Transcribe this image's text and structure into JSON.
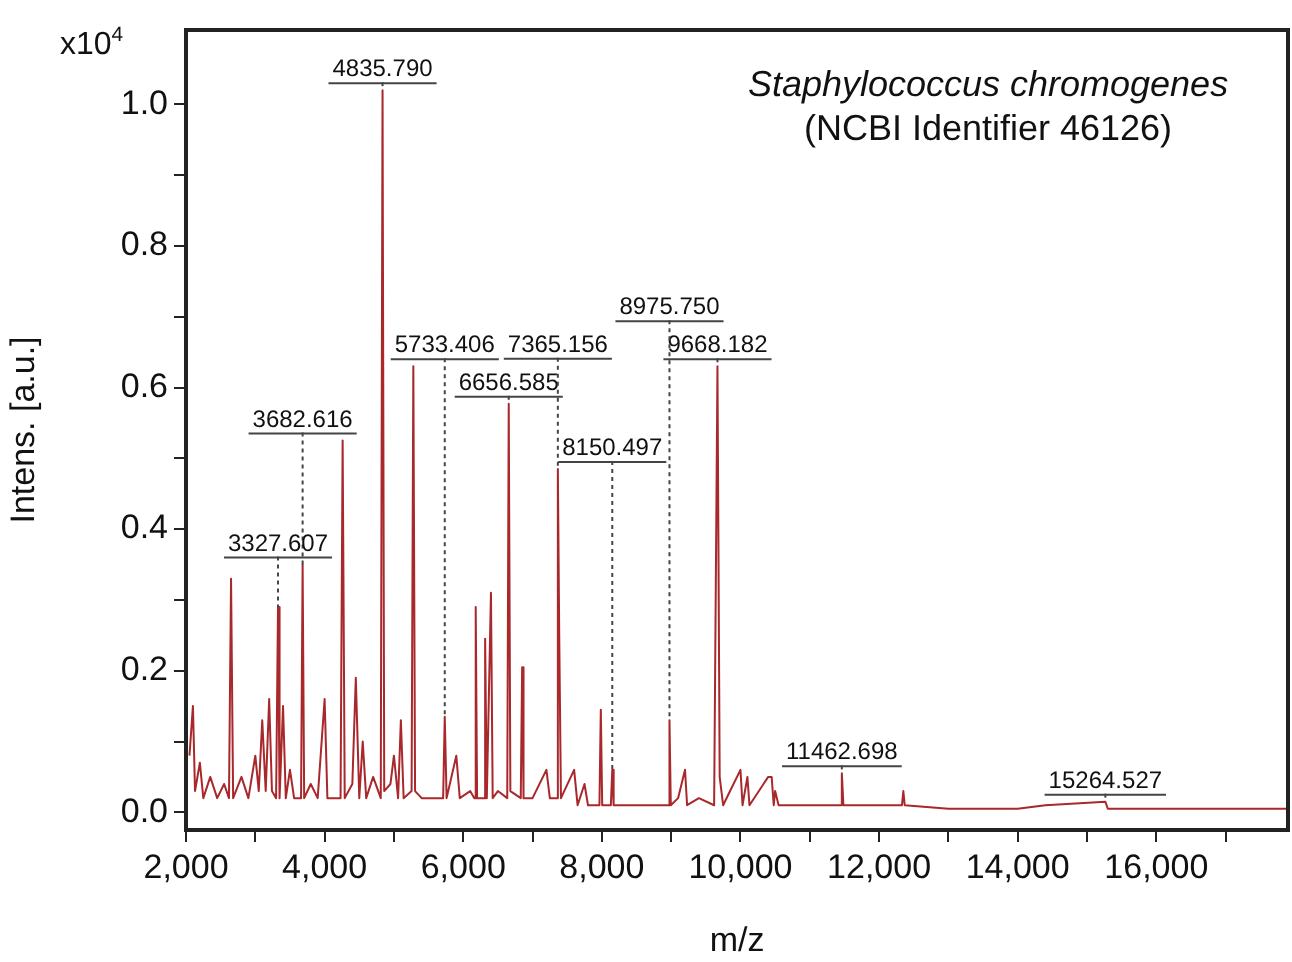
{
  "chart_data": {
    "type": "line",
    "title": "Staphylococcus chromogenes",
    "subtitle": "(NCBI Identifier 46126)",
    "xlabel": "m/z",
    "ylabel": "Intens. [a.u.]",
    "annotations": [
      "x10$^{4}$",
      {
        "text": "9668.182",
        "x": 9668.182,
        "y": 0.63
      },
      {
        "text": "4835.790",
        "x": 4835.79,
        "y": 1.02
      },
      {
        "text": "3682.616",
        "x": 3682.616,
        "y": 0.35
      },
      {
        "text": "5733.406",
        "x": 5733.406,
        "y": 0.135
      },
      {
        "text": "3327.607",
        "x": 3327.607,
        "y": 0.29
      },
      {
        "text": "6656.585",
        "x": 6656.585,
        "y": 0.577
      },
      {
        "text": "7365.156",
        "x": 7365.156,
        "y": 0.485
      },
      {
        "text": "8975.750",
        "x": 8975.75,
        "y": 0.13
      },
      {
        "text": "8150.497",
        "x": 8150.497,
        "y": 0.06
      },
      {
        "text": "11462.698",
        "x": 11462.698,
        "y": 0.055
      },
      {
        "text": "15264.527",
        "x": 15264.527,
        "y": 0.015
      }
    ],
    "x": [
      2050,
      2100,
      2130,
      2200,
      2250,
      2350,
      2450,
      2550,
      2620,
      2650,
      2680,
      2800,
      2900,
      3000,
      3050,
      3100,
      3150,
      3200,
      3240,
      3300,
      3327.607,
      3350,
      3400,
      3440,
      3500,
      3560,
      3660,
      3682.616,
      3705,
      3800,
      3900,
      4000,
      4040,
      4230,
      4260,
      4290,
      4400,
      4450,
      4500,
      4550,
      4600,
      4700,
      4810,
      4835.79,
      4860,
      4950,
      5000,
      5060,
      5100,
      5140,
      5255,
      5280,
      5305,
      5400,
      5600,
      5710,
      5733.406,
      5760,
      5900,
      5950,
      6100,
      6160,
      6180,
      6200,
      6300,
      6316,
      6340,
      6400,
      6425,
      6500,
      6635,
      6656.585,
      6680,
      6830,
      6850,
      6870,
      7000,
      7200,
      7250,
      7340,
      7365.156,
      7385,
      7410,
      7600,
      7650,
      7750,
      7800,
      7965,
      7985,
      8005,
      8130,
      8150.497,
      8170,
      8400,
      8700,
      8955,
      8975.75,
      8995,
      9100,
      9200,
      9230,
      9400,
      9620,
      9668.182,
      9700,
      9750,
      9850,
      10000,
      10030,
      10100,
      10130,
      10400,
      10450,
      10480,
      10500,
      10550,
      10900,
      11440,
      11462.698,
      11485,
      12000,
      12330,
      12350,
      12370,
      13000,
      14000,
      14400,
      15264.527,
      15300,
      16000,
      17900
    ],
    "series": [
      {
        "color": "#a8282c",
        "values": [
          0.08,
          0.15,
          0.03,
          0.07,
          0.02,
          0.05,
          0.02,
          0.04,
          0.02,
          0.33,
          0.02,
          0.05,
          0.02,
          0.08,
          0.03,
          0.13,
          0.03,
          0.16,
          0.03,
          0.02,
          0.29,
          0.02,
          0.15,
          0.02,
          0.06,
          0.02,
          0.02,
          0.35,
          0.02,
          0.04,
          0.02,
          0.16,
          0.02,
          0.02,
          0.525,
          0.02,
          0.04,
          0.19,
          0.02,
          0.1,
          0.02,
          0.05,
          0.02,
          1.02,
          0.03,
          0.04,
          0.08,
          0.02,
          0.13,
          0.02,
          0.03,
          0.63,
          0.03,
          0.02,
          0.02,
          0.02,
          0.135,
          0.02,
          0.08,
          0.02,
          0.03,
          0.02,
          0.29,
          0.02,
          0.02,
          0.245,
          0.02,
          0.31,
          0.02,
          0.03,
          0.02,
          0.577,
          0.03,
          0.02,
          0.205,
          0.02,
          0.02,
          0.06,
          0.02,
          0.02,
          0.485,
          0.25,
          0.02,
          0.06,
          0.01,
          0.04,
          0.01,
          0.01,
          0.145,
          0.01,
          0.01,
          0.06,
          0.01,
          0.01,
          0.01,
          0.01,
          0.13,
          0.01,
          0.02,
          0.06,
          0.01,
          0.02,
          0.01,
          0.63,
          0.05,
          0.01,
          0.03,
          0.06,
          0.01,
          0.05,
          0.01,
          0.05,
          0.05,
          0.01,
          0.03,
          0.01,
          0.01,
          0.01,
          0.055,
          0.01,
          0.01,
          0.01,
          0.03,
          0.01,
          0.005,
          0.005,
          0.01,
          0.015,
          0.005,
          0.005,
          0.005
        ]
      }
    ],
    "xlim": [
      2000,
      17900
    ],
    "xticks": [
      {
        "value": 2000,
        "label": "2,000"
      },
      {
        "value": 3000,
        "label": null
      },
      {
        "value": 4000,
        "label": "4,000"
      },
      {
        "value": 5000,
        "label": null
      },
      {
        "value": 6000,
        "label": "6,000"
      },
      {
        "value": 7000,
        "label": null
      },
      {
        "value": 8000,
        "label": "8,000"
      },
      {
        "value": 9000,
        "label": null
      },
      {
        "value": 10000,
        "label": "10,000"
      },
      {
        "value": 11000,
        "label": null
      },
      {
        "value": 12000,
        "label": "12,000"
      },
      {
        "value": 13000,
        "label": null
      },
      {
        "value": 14000,
        "label": "14,000"
      },
      {
        "value": 15000,
        "label": null
      },
      {
        "value": 16000,
        "label": "16,000"
      },
      {
        "value": 17000,
        "label": null
      }
    ],
    "ylim": [
      -0.025,
      1.105
    ],
    "yticks": [
      {
        "value": 0,
        "label": "0.0"
      },
      {
        "value": 0.1,
        "label": null
      },
      {
        "value": 0.2,
        "label": "0.2"
      },
      {
        "value": 0.3,
        "label": null
      },
      {
        "value": 0.4,
        "label": "0.4"
      },
      {
        "value": 0.5,
        "label": null
      },
      {
        "value": 0.6,
        "label": "0.6"
      },
      {
        "value": 0.7,
        "label": null
      },
      {
        "value": 0.8,
        "label": "0.8"
      },
      {
        "value": 0.9,
        "label": null
      },
      {
        "value": 1.0,
        "label": "1.0"
      }
    ],
    "grid": false,
    "legend": false,
    "marker": "none",
    "line_style": "solid"
  }
}
